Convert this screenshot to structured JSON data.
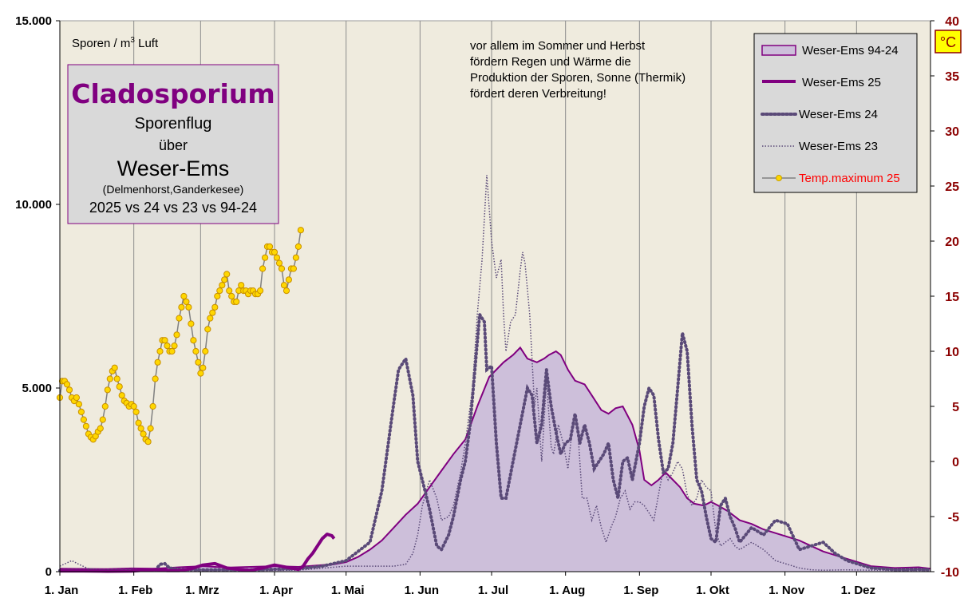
{
  "chart_data": {
    "type": "area",
    "y_left_label_text": "Sporen / m",
    "y_left_label_sup": "3",
    "y_left_label_after": " Luft",
    "y_left_ticks": [
      "15.000",
      "10.000",
      "5.000",
      "0"
    ],
    "y_left_range": [
      0,
      15000
    ],
    "y_right_ticks": [
      "40",
      "35",
      "30",
      "25",
      "20",
      "15",
      "10",
      "5",
      "0",
      "-5",
      "-10"
    ],
    "y_right_range": [
      -10,
      40
    ],
    "y_right_unit": "°C",
    "x_range_days": [
      0,
      365
    ],
    "x_ticks": [
      {
        "label": "1. Jan",
        "day": 0
      },
      {
        "label": "1. Feb",
        "day": 31
      },
      {
        "label": "1. Mrz",
        "day": 59
      },
      {
        "label": "1. Apr",
        "day": 90
      },
      {
        "label": "1. Mai",
        "day": 120
      },
      {
        "label": "1. Jun",
        "day": 151
      },
      {
        "label": "1. Jul",
        "day": 181
      },
      {
        "label": "1. Aug",
        "day": 212
      },
      {
        "label": "1. Sep",
        "day": 243
      },
      {
        "label": "1. Okt",
        "day": 273
      },
      {
        "label": "1. Nov",
        "day": 304
      },
      {
        "label": "1. Dez",
        "day": 334
      }
    ],
    "title_box": {
      "title": "Cladosporium",
      "line1": "Sporenflug",
      "line2": "über",
      "line3": "Weser-Ems",
      "line4": "(Delmenhorst,Ganderkesee)",
      "line5": "2025 vs 24 vs 23 vs 94-24"
    },
    "annotation": [
      "vor allem im  Sommer und Herbst",
      "fördern Regen und Wärme die",
      "Produktion der Sporen, Sonne (Thermik)",
      "fördert deren Verbreitung!"
    ],
    "legend": [
      {
        "name": "Weser-Ems 94-24",
        "style": "area",
        "color": "#800080",
        "fill": "#cdbfda"
      },
      {
        "name": "Weser-Ems 25",
        "style": "thick",
        "color": "#800080"
      },
      {
        "name": "Weser-Ems 24",
        "style": "dotted-thick",
        "color": "#5a4a78"
      },
      {
        "name": "Weser-Ems 23",
        "style": "dotted-thin",
        "color": "#5a4a78"
      },
      {
        "name": "Temp.maximum 25",
        "style": "marker",
        "color": "#808080",
        "marker_fill": "#ffd700",
        "text_color": "#ff0000"
      }
    ],
    "series": [
      {
        "name": "Weser-Ems 94-24",
        "axis": "left",
        "x": [
          0,
          20,
          30,
          40,
          50,
          60,
          70,
          80,
          90,
          100,
          110,
          115,
          120,
          125,
          130,
          135,
          140,
          145,
          150,
          155,
          160,
          165,
          170,
          175,
          180,
          183,
          186,
          190,
          193,
          196,
          200,
          203,
          205,
          208,
          210,
          213,
          216,
          220,
          223,
          227,
          230,
          233,
          236,
          240,
          243,
          245,
          248,
          251,
          254,
          257,
          260,
          263,
          266,
          270,
          273,
          276,
          280,
          285,
          290,
          295,
          300,
          305,
          310,
          315,
          320,
          330,
          340,
          350,
          360,
          365
        ],
        "values": [
          80,
          70,
          90,
          80,
          120,
          150,
          110,
          130,
          150,
          130,
          180,
          200,
          260,
          400,
          600,
          850,
          1200,
          1550,
          1850,
          2300,
          2750,
          3200,
          3600,
          4500,
          5300,
          5500,
          5700,
          5900,
          6100,
          5800,
          5700,
          5800,
          5900,
          6000,
          5900,
          5500,
          5200,
          5100,
          4800,
          4400,
          4300,
          4450,
          4500,
          4000,
          3300,
          2500,
          2350,
          2500,
          2700,
          2500,
          2300,
          2000,
          1850,
          1800,
          1900,
          1800,
          1650,
          1400,
          1300,
          1150,
          1050,
          950,
          850,
          700,
          550,
          350,
          150,
          100,
          120,
          80
        ]
      },
      {
        "name": "Weser-Ems 25",
        "axis": "left",
        "x": [
          0,
          10,
          20,
          30,
          40,
          45,
          50,
          55,
          60,
          65,
          70,
          75,
          80,
          85,
          90,
          95,
          100,
          102,
          104,
          106,
          108,
          110,
          112,
          114,
          115
        ],
        "values": [
          20,
          20,
          10,
          15,
          60,
          30,
          30,
          80,
          180,
          220,
          100,
          60,
          40,
          100,
          180,
          120,
          60,
          150,
          350,
          500,
          700,
          900,
          1020,
          980,
          900
        ]
      },
      {
        "name": "Weser-Ems 24",
        "axis": "left",
        "x": [
          0,
          20,
          40,
          42,
          44,
          46,
          50,
          60,
          80,
          100,
          110,
          120,
          130,
          135,
          140,
          142,
          145,
          148,
          150,
          155,
          158,
          160,
          163,
          165,
          168,
          170,
          172,
          174,
          176,
          178,
          179,
          181,
          183,
          185,
          187,
          190,
          193,
          196,
          198,
          200,
          202,
          204,
          206,
          208,
          210,
          212,
          214,
          216,
          218,
          220,
          222,
          224,
          226,
          228,
          230,
          232,
          234,
          236,
          238,
          240,
          243,
          245,
          247,
          249,
          251,
          253,
          255,
          257,
          259,
          261,
          263,
          265,
          267,
          269,
          271,
          273,
          275,
          277,
          279,
          281,
          283,
          285,
          290,
          295,
          300,
          305,
          310,
          315,
          320,
          325,
          330,
          340,
          345,
          350,
          360,
          365
        ],
        "values": [
          30,
          30,
          40,
          200,
          220,
          100,
          60,
          50,
          50,
          80,
          150,
          300,
          800,
          2200,
          4600,
          5500,
          5800,
          4800,
          3000,
          1700,
          700,
          600,
          1000,
          1500,
          2500,
          3000,
          4000,
          5500,
          7000,
          6800,
          5500,
          5600,
          3500,
          2000,
          2000,
          3000,
          4000,
          5000,
          4800,
          3500,
          4000,
          5500,
          4500,
          3800,
          3200,
          3500,
          3600,
          4300,
          3500,
          4000,
          3500,
          2800,
          3000,
          3200,
          3500,
          2500,
          2000,
          3000,
          3100,
          2500,
          3500,
          4500,
          5000,
          4800,
          3600,
          2700,
          2800,
          3500,
          5000,
          6500,
          6000,
          4000,
          2500,
          2200,
          1500,
          900,
          800,
          1800,
          2000,
          1500,
          1200,
          800,
          1200,
          1000,
          1400,
          1300,
          600,
          700,
          800,
          500,
          300,
          100,
          80,
          50,
          60,
          50
        ]
      },
      {
        "name": "Weser-Ems 23",
        "axis": "left",
        "x": [
          0,
          5,
          8,
          12,
          20,
          30,
          60,
          80,
          100,
          120,
          130,
          140,
          145,
          148,
          150,
          152,
          155,
          158,
          160,
          163,
          165,
          168,
          170,
          173,
          175,
          177,
          179,
          181,
          183,
          185,
          186,
          187,
          189,
          191,
          193,
          194,
          195,
          197,
          199,
          200,
          202,
          204,
          206,
          207,
          209,
          211,
          213,
          215,
          217,
          219,
          221,
          223,
          225,
          227,
          229,
          231,
          233,
          235,
          237,
          239,
          241,
          243,
          245,
          247,
          249,
          251,
          253,
          255,
          257,
          259,
          261,
          263,
          265,
          267,
          269,
          271,
          273,
          275,
          277,
          279,
          281,
          283,
          285,
          290,
          295,
          300,
          305,
          310,
          315,
          320,
          330,
          340,
          350,
          365
        ],
        "values": [
          150,
          300,
          200,
          80,
          40,
          30,
          30,
          30,
          40,
          150,
          150,
          150,
          200,
          500,
          1000,
          1800,
          2500,
          2000,
          1400,
          1500,
          1800,
          2700,
          3500,
          5000,
          7000,
          8500,
          10800,
          9000,
          8000,
          8500,
          7000,
          6000,
          6800,
          7000,
          8200,
          8700,
          8400,
          7000,
          4500,
          5000,
          3000,
          5200,
          3400,
          3200,
          4000,
          3500,
          2800,
          4000,
          4000,
          2000,
          2000,
          1400,
          1800,
          1200,
          800,
          1200,
          1500,
          2000,
          2200,
          1700,
          1900,
          1900,
          1800,
          1600,
          1400,
          2100,
          2800,
          2500,
          2700,
          3000,
          2800,
          2100,
          1800,
          2000,
          2500,
          2300,
          2200,
          1100,
          700,
          800,
          900,
          700,
          600,
          800,
          600,
          300,
          200,
          100,
          50,
          40,
          50,
          40,
          30,
          30
        ]
      },
      {
        "name": "Temp.maximum 25",
        "axis": "right",
        "values": [
          5.8,
          7.3,
          7.3,
          7.0,
          6.5,
          5.8,
          5.5,
          5.8,
          5.2,
          4.5,
          3.8,
          3.2,
          2.5,
          2.2,
          2.0,
          2.3,
          2.7,
          3.0,
          3.8,
          5.0,
          6.5,
          7.5,
          8.2,
          8.5,
          7.5,
          6.8,
          6.0,
          5.5,
          5.3,
          5.0,
          5.2,
          5.0,
          4.5,
          3.5,
          3.0,
          2.5,
          2.0,
          1.8,
          3.0,
          5.0,
          7.5,
          9.0,
          10.0,
          11.0,
          11.0,
          10.5,
          10.0,
          10.0,
          10.5,
          11.5,
          13.0,
          14.0,
          15.0,
          14.5,
          14.0,
          12.5,
          11.0,
          10.0,
          9.0,
          8.0,
          8.5,
          10.0,
          12.0,
          13.0,
          13.5,
          14.0,
          15.0,
          15.5,
          16.0,
          16.5,
          17.0,
          15.5,
          15.0,
          14.5,
          14.5,
          15.5,
          16.0,
          15.5,
          15.5,
          15.2,
          15.5,
          15.5,
          15.2,
          15.2,
          15.5,
          17.5,
          18.5,
          19.5,
          19.5,
          19.0,
          19.0,
          18.5,
          18.0,
          17.5,
          16.0,
          15.5,
          16.5,
          17.5,
          17.5,
          18.5,
          19.5,
          21.0
        ]
      }
    ]
  }
}
